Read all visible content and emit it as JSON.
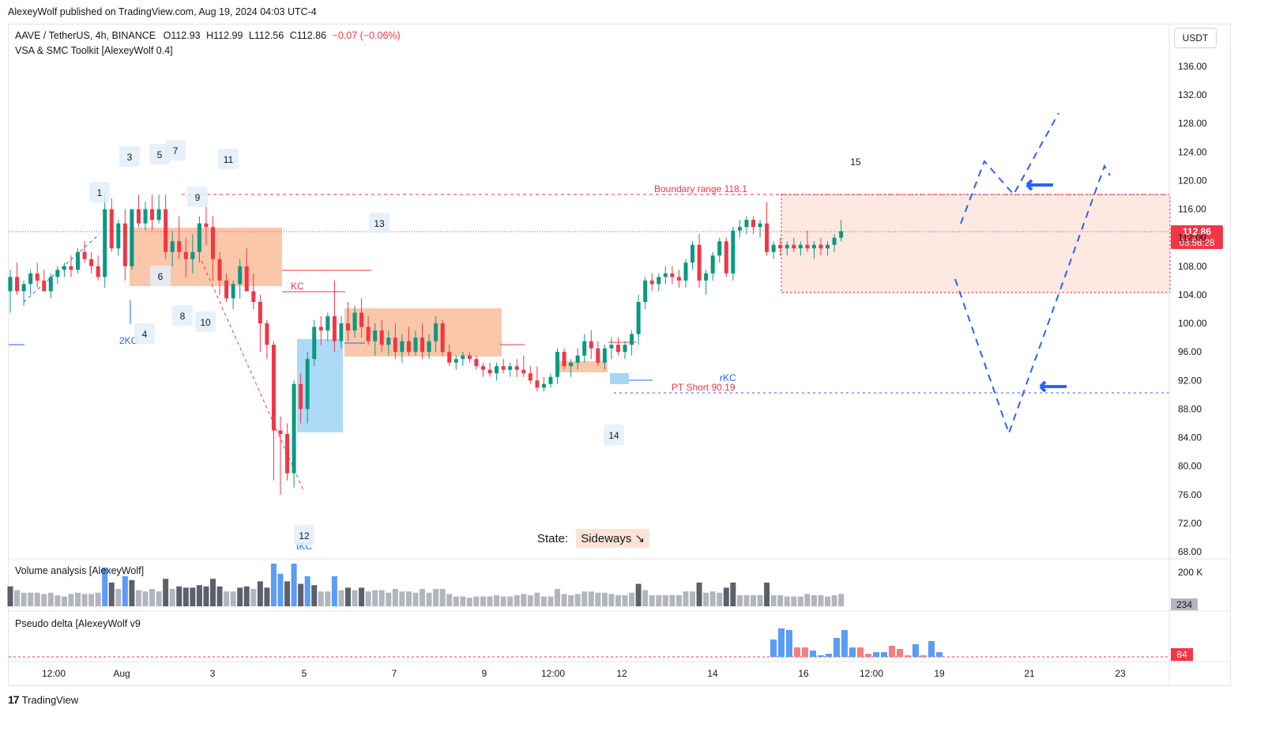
{
  "header": {
    "published": "AlexeyWolf published on TradingView.com, Aug 19, 2024 04:03 UTC-4"
  },
  "legend": {
    "symbol": "AAVE / TetherUS, 4h, BINANCE",
    "open_label": "O",
    "open": "112.93",
    "high_label": "H",
    "high": "112.99",
    "low_label": "L",
    "low": "112.56",
    "close_label": "C",
    "close": "112.86",
    "change": "−0.07 (−0.06%)",
    "indicator": "VSA & SMC Toolkit [AlexeyWolf 0.4]"
  },
  "currency": "USDT",
  "price_badge": {
    "price": "112.86",
    "countdown": "03:56:28"
  },
  "state": {
    "label": "State:",
    "value": "Sideways ↘"
  },
  "panes": {
    "volume_title": "Volume analysis [AlexeyWolf]",
    "volume_axis": "200 K",
    "volume_value": "234",
    "delta_title": "Pseudo delta [AlexeyWolf v9",
    "delta_value": "84"
  },
  "footer": {
    "brand": "TradingView"
  },
  "colors": {
    "up": "#089981",
    "down": "#f23645",
    "blue": "#2962ff",
    "zone_orange": "#f9b48f",
    "zone_blue": "#90cdf4",
    "zone_pink": "#fde9e1"
  },
  "chart_data": {
    "type": "candlestick",
    "price_axis": {
      "min": 68,
      "max": 136,
      "ticks": [
        "136.00",
        "132.00",
        "128.00",
        "124.00",
        "120.00",
        "116.00",
        "112.00",
        "108.00",
        "104.00",
        "100.00",
        "96.00",
        "92.00",
        "88.00",
        "84.00",
        "80.00",
        "76.00",
        "72.00",
        "68.00"
      ]
    },
    "time_axis": {
      "ticks": [
        "12:00",
        "Aug",
        "3",
        "5",
        "7",
        "9",
        "12:00",
        "12",
        "14",
        "16",
        "12:00",
        "19",
        "21",
        "23"
      ]
    },
    "annotations": {
      "boundary_label": "Boundary range 118.1",
      "boundary_price": 118.1,
      "pt_short_label": "PT Short 90.19",
      "pt_short_price": 90.19,
      "kc_label": "KC",
      "rkc_label": "rKC",
      "tkc_label": "tKC",
      "twokc_label": "2KC",
      "markers": [
        "1",
        "2KC",
        "3",
        "4",
        "5",
        "6",
        "7",
        "8",
        "9",
        "10",
        "11",
        "12",
        "13",
        "14",
        "15"
      ]
    },
    "candles": [
      [
        104.5,
        107.5,
        101.5,
        106.5
      ],
      [
        106.5,
        108.5,
        104,
        104.5
      ],
      [
        104.5,
        106,
        102.5,
        105.5
      ],
      [
        105.5,
        107.5,
        104,
        107
      ],
      [
        107,
        108.5,
        105,
        106
      ],
      [
        106,
        107.5,
        104.5,
        104.5
      ],
      [
        104.5,
        107,
        103.5,
        106.5
      ],
      [
        106.5,
        108,
        105.5,
        107.5
      ],
      [
        107.5,
        108.5,
        106.5,
        108
      ],
      [
        108,
        109.5,
        106.5,
        107.5
      ],
      [
        107.5,
        110.5,
        107,
        110
      ],
      [
        110,
        111.5,
        108.5,
        109
      ],
      [
        109,
        110,
        107,
        108
      ],
      [
        108,
        109.5,
        106,
        106.5
      ],
      [
        106.5,
        118.5,
        105,
        116
      ],
      [
        116,
        117.5,
        110,
        110.5
      ],
      [
        110.5,
        114.5,
        109.5,
        114
      ],
      [
        114,
        116,
        106,
        108
      ],
      [
        108,
        116,
        107.5,
        116
      ],
      [
        116,
        118,
        113.5,
        114
      ],
      [
        114,
        117,
        113,
        116
      ],
      [
        116,
        118,
        113,
        114.5
      ],
      [
        114.5,
        118,
        114,
        116
      ],
      [
        116,
        118,
        109,
        110
      ],
      [
        110,
        113,
        108,
        111.5
      ],
      [
        111.5,
        115,
        109,
        110
      ],
      [
        110,
        112,
        106.5,
        109
      ],
      [
        109,
        112.5,
        107,
        110
      ],
      [
        110,
        115,
        108.5,
        114
      ],
      [
        114,
        117,
        111,
        113.5
      ],
      [
        113.5,
        115,
        106,
        109
      ],
      [
        109,
        110,
        104,
        106
      ],
      [
        106,
        107,
        103,
        103.5
      ],
      [
        103.5,
        106,
        102,
        105.5
      ],
      [
        105.5,
        109,
        103.5,
        108
      ],
      [
        108,
        110.5,
        104.5,
        104.5
      ],
      [
        104.5,
        107,
        102,
        103
      ],
      [
        103,
        104,
        96,
        100
      ],
      [
        100,
        100.5,
        95,
        97
      ],
      [
        97,
        97.5,
        78,
        85
      ],
      [
        85,
        87,
        76,
        84.5
      ],
      [
        84.5,
        86,
        78,
        79
      ],
      [
        79,
        92,
        77,
        91.5
      ],
      [
        91.5,
        93,
        86,
        88
      ],
      [
        88,
        96,
        86,
        95
      ],
      [
        95,
        100.5,
        94,
        99.5
      ],
      [
        99.5,
        101,
        97,
        99
      ],
      [
        99,
        101.5,
        97.5,
        101
      ],
      [
        101,
        106,
        96,
        97.5
      ],
      [
        97.5,
        101,
        96.5,
        100
      ],
      [
        100,
        103,
        97.5,
        99
      ],
      [
        99,
        102.5,
        98,
        101.5
      ],
      [
        101.5,
        103.5,
        98,
        99.5
      ],
      [
        99.5,
        101,
        97,
        97.5
      ],
      [
        97.5,
        100,
        95.5,
        99
      ],
      [
        99,
        100.5,
        96,
        97
      ],
      [
        97,
        99,
        95.5,
        98
      ],
      [
        98,
        100,
        95,
        96
      ],
      [
        96,
        98.5,
        94.5,
        97.5
      ],
      [
        97.5,
        99.5,
        95.5,
        96
      ],
      [
        96,
        99,
        95.5,
        98
      ],
      [
        98,
        100,
        95,
        96
      ],
      [
        96,
        98.5,
        95,
        97.5
      ],
      [
        97.5,
        101,
        96,
        100
      ],
      [
        100,
        100.5,
        95.5,
        96
      ],
      [
        96,
        97,
        94,
        94.5
      ],
      [
        94.5,
        95.5,
        93.5,
        95
      ],
      [
        95,
        96,
        94,
        95.5
      ],
      [
        95.5,
        96,
        94.5,
        95
      ],
      [
        95,
        95.5,
        93.5,
        94
      ],
      [
        94,
        94.5,
        92.5,
        93.5
      ],
      [
        93.5,
        94.5,
        92.5,
        93
      ],
      [
        93,
        94.5,
        92,
        94
      ],
      [
        94,
        95,
        93,
        93.5
      ],
      [
        93.5,
        94.5,
        92.5,
        94
      ],
      [
        94,
        95,
        92.5,
        93.5
      ],
      [
        93.5,
        95.5,
        92.5,
        93
      ],
      [
        93,
        94,
        91.5,
        92
      ],
      [
        92,
        94,
        90.5,
        91
      ],
      [
        91,
        92.5,
        90.5,
        91.5
      ],
      [
        91.5,
        93,
        91,
        92.5
      ],
      [
        92.5,
        96.5,
        91.5,
        96
      ],
      [
        96,
        96.5,
        93.5,
        94
      ],
      [
        94,
        95,
        92.5,
        94.5
      ],
      [
        94.5,
        96.5,
        93.5,
        95.5
      ],
      [
        95.5,
        98.5,
        94.5,
        97.5
      ],
      [
        97.5,
        99,
        95,
        96.5
      ],
      [
        96.5,
        97.5,
        94,
        94.5
      ],
      [
        94.5,
        97,
        93.5,
        96.5
      ],
      [
        96.5,
        98,
        95,
        97
      ],
      [
        97,
        98,
        95.5,
        96
      ],
      [
        96,
        97.5,
        95,
        97
      ],
      [
        97,
        99,
        95.5,
        98.5
      ],
      [
        98.5,
        104,
        97,
        103
      ],
      [
        103,
        106.5,
        102,
        106
      ],
      [
        106,
        107,
        104.5,
        105.5
      ],
      [
        105.5,
        107,
        104.5,
        106.5
      ],
      [
        106.5,
        108,
        105.5,
        107
      ],
      [
        107,
        108,
        105.5,
        106.5
      ],
      [
        106.5,
        107.5,
        105,
        106
      ],
      [
        106,
        109,
        105,
        108.5
      ],
      [
        108.5,
        111.5,
        107.5,
        111
      ],
      [
        111,
        112.5,
        105,
        106
      ],
      [
        106,
        107.5,
        104,
        107
      ],
      [
        107,
        110,
        106,
        109.5
      ],
      [
        109.5,
        112,
        108.5,
        111.5
      ],
      [
        111.5,
        112,
        106.5,
        107
      ],
      [
        107,
        113.5,
        106,
        113
      ],
      [
        113,
        114.5,
        112,
        113.5
      ],
      [
        113.5,
        115,
        112.5,
        114.5
      ],
      [
        114.5,
        115,
        112.5,
        113.5
      ],
      [
        113.5,
        114.5,
        112,
        114
      ],
      [
        114,
        117,
        109.5,
        110
      ],
      [
        110,
        111.5,
        109,
        111
      ],
      [
        111,
        112,
        109.5,
        110.5
      ],
      [
        110.5,
        111.5,
        109.5,
        111
      ],
      [
        111,
        112,
        110,
        110.5
      ],
      [
        110.5,
        111.5,
        109.5,
        111
      ],
      [
        111,
        113,
        110,
        110.5
      ],
      [
        110.5,
        111.5,
        109,
        111
      ],
      [
        111,
        112,
        109.5,
        110.5
      ],
      [
        110.5,
        111.5,
        109.5,
        111
      ],
      [
        111,
        112.5,
        110,
        112
      ],
      [
        112,
        114.5,
        111.5,
        112.9
      ]
    ]
  }
}
